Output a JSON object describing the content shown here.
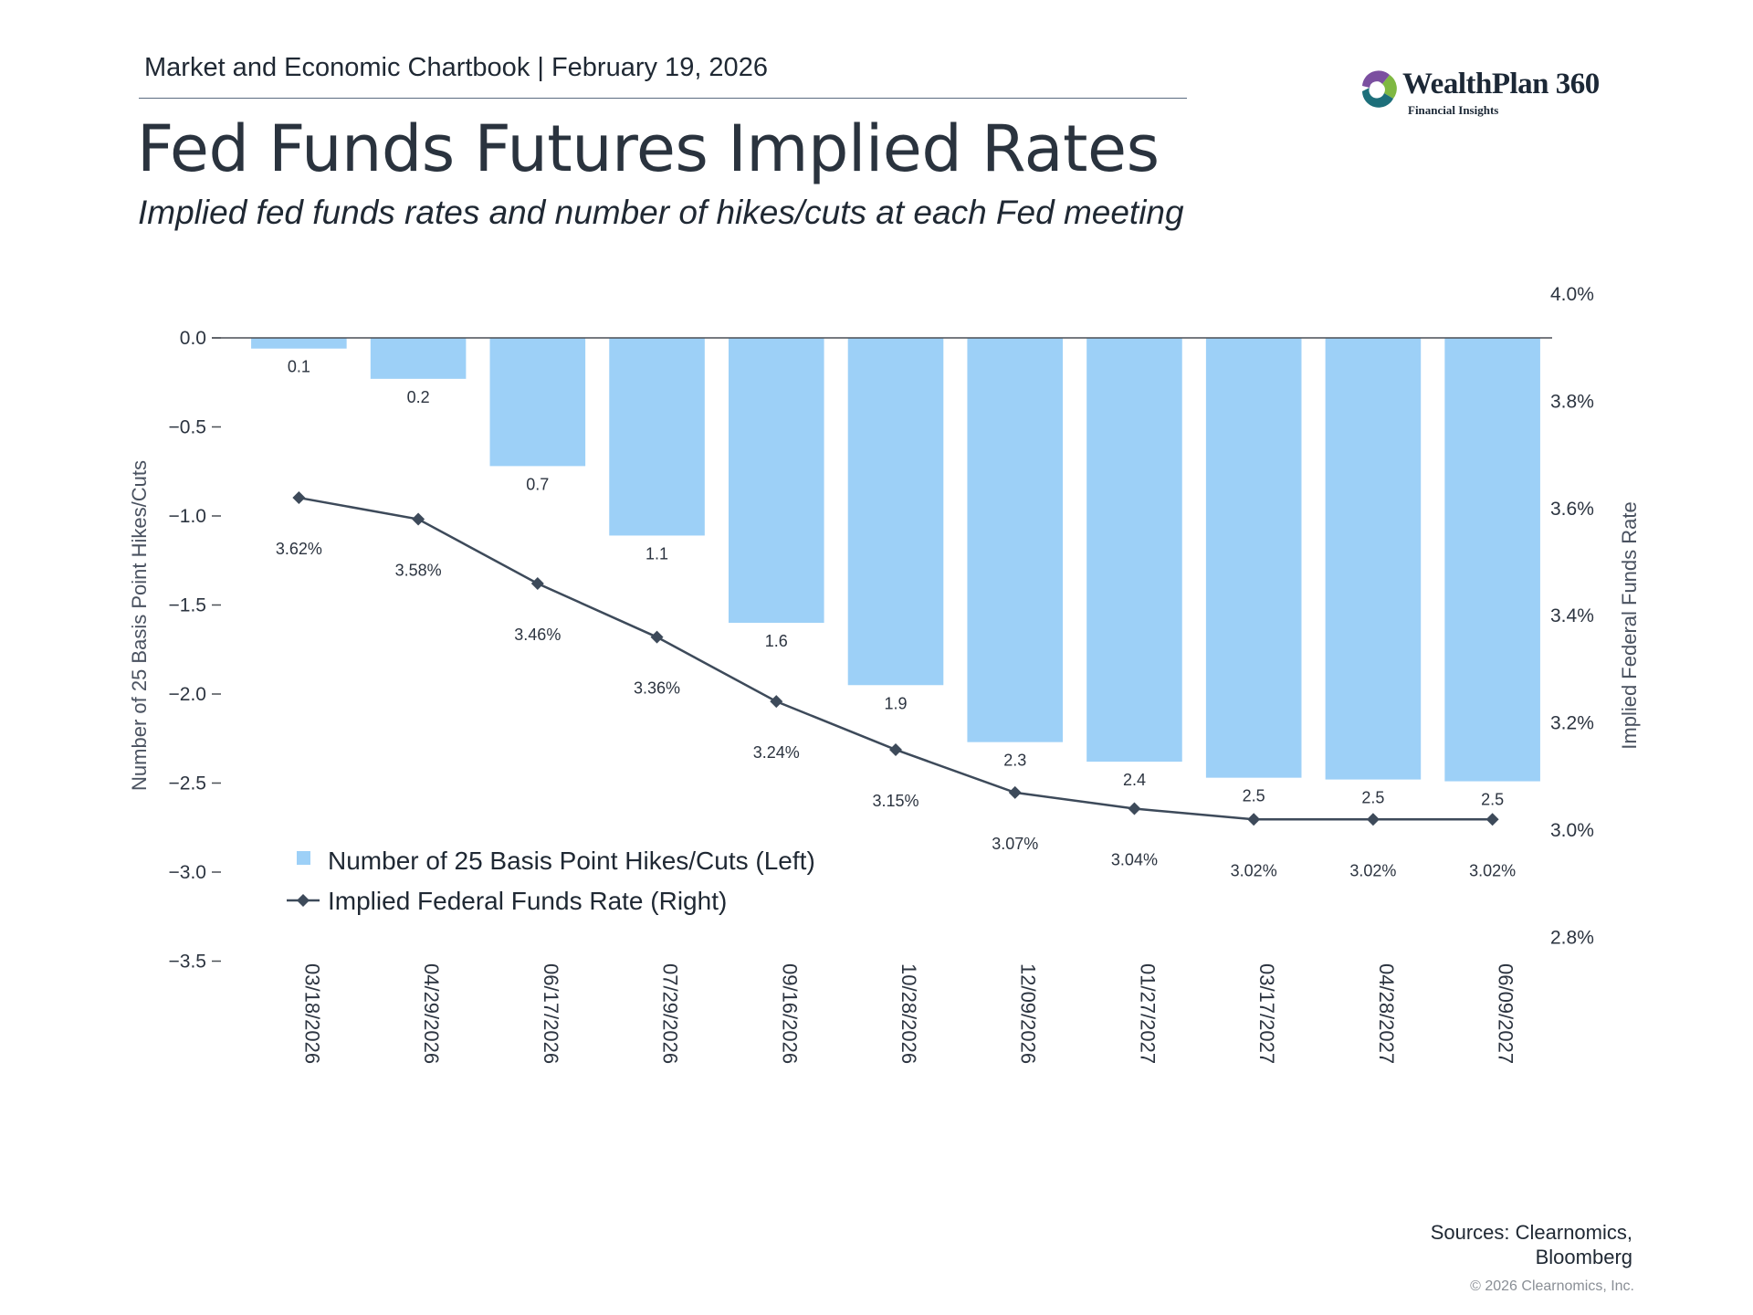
{
  "header": {
    "chartbook_label": "Market and Economic Chartbook | February 19, 2026"
  },
  "logo": {
    "name": "WealthPlan 360",
    "tagline": "Financial Insights"
  },
  "title": "Fed Funds Futures Implied Rates",
  "subtitle": "Implied fed funds rates and number of hikes/cuts at each Fed meeting",
  "chart_data": {
    "type": "bar",
    "categories": [
      "03/18/2026",
      "04/29/2026",
      "06/17/2026",
      "07/29/2026",
      "09/16/2026",
      "10/28/2026",
      "12/09/2026",
      "01/27/2027",
      "03/17/2027",
      "04/28/2027",
      "06/09/2027"
    ],
    "series": [
      {
        "name": "Number of 25 Basis Point Hikes/Cuts (Left)",
        "type": "bar",
        "axis": "left",
        "values": [
          -0.06,
          -0.23,
          -0.72,
          -1.11,
          -1.6,
          -1.95,
          -2.27,
          -2.38,
          -2.47,
          -2.48,
          -2.49
        ],
        "labels": [
          "0.1",
          "0.2",
          "0.7",
          "1.1",
          "1.6",
          "1.9",
          "2.3",
          "2.4",
          "2.5",
          "2.5",
          "2.5"
        ],
        "color": "#9dd0f7"
      },
      {
        "name": "Implied Federal Funds Rate (Right)",
        "type": "line",
        "axis": "right",
        "values": [
          3.62,
          3.58,
          3.46,
          3.36,
          3.24,
          3.15,
          3.07,
          3.04,
          3.02,
          3.02,
          3.02
        ],
        "labels": [
          "3.62%",
          "3.58%",
          "3.46%",
          "3.36%",
          "3.24%",
          "3.15%",
          "3.07%",
          "3.04%",
          "3.02%",
          "3.02%",
          "3.02%"
        ],
        "color": "#3d4a5a"
      }
    ],
    "left_axis": {
      "label": "Number of 25 Basis Point Hikes/Cuts",
      "range": [
        -3.5,
        0.25
      ],
      "ticks": [
        0.0,
        -0.5,
        -1.0,
        -1.5,
        -2.0,
        -2.5,
        -3.0,
        -3.5
      ],
      "tick_labels": [
        "0.0",
        "−0.5",
        "−1.0",
        "−1.5",
        "−2.0",
        "−2.5",
        "−3.0",
        "−3.5"
      ]
    },
    "right_axis": {
      "label": "Implied Federal Funds Rate",
      "range": [
        2.8,
        4.0
      ],
      "ticks": [
        4.0,
        3.8,
        3.6,
        3.4,
        3.2,
        3.0,
        2.8
      ],
      "tick_labels": [
        "4.0%",
        "3.8%",
        "3.6%",
        "3.4%",
        "3.2%",
        "3.0%",
        "2.8%"
      ]
    },
    "legend": {
      "position": "bottom-left",
      "items": [
        "Number of 25 Basis Point Hikes/Cuts (Left)",
        "Implied Federal Funds Rate (Right)"
      ]
    },
    "grid": false
  },
  "footer": {
    "sources_line1": "Sources: Clearnomics,",
    "sources_line2": "Bloomberg",
    "copyright": "© 2026 Clearnomics, Inc."
  },
  "colors": {
    "bar": "#9dd0f7",
    "line": "#3d4a5a",
    "text": "#2c3440",
    "logo_purple": "#7b4fa0",
    "logo_green": "#7fb842",
    "logo_teal": "#1d6f7a"
  }
}
